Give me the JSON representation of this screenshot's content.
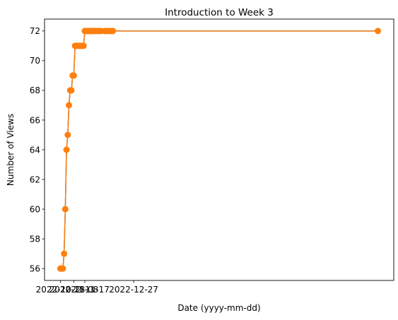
{
  "chart_data": {
    "type": "line",
    "title": "Introduction to Week 3",
    "xlabel": "Date (yyyy-mm-dd)",
    "ylabel": "Number of Views",
    "ylim": [
      55.2,
      72.8
    ],
    "y_ticks": [
      56,
      58,
      60,
      62,
      64,
      66,
      68,
      70,
      72
    ],
    "x_tick_labels": [
      "2022-10-28",
      "2022-11-08",
      "2022-11-17",
      "2022-12-27"
    ],
    "x_tick_dates": [
      "2022-10-28",
      "2022-11-08",
      "2022-11-17",
      "2022-12-27"
    ],
    "grid": false,
    "series": [
      {
        "line_color": "#1f77b4",
        "marker_color": "#ff7f0e",
        "x": [
          "2022-10-28",
          "2022-10-29",
          "2022-10-30",
          "2022-10-31",
          "2022-11-01",
          "2022-11-02",
          "2022-11-03",
          "2022-11-04",
          "2022-11-05",
          "2022-11-06",
          "2022-11-07",
          "2022-11-08",
          "2022-11-09",
          "2022-11-10",
          "2022-11-11",
          "2022-11-12",
          "2022-11-13",
          "2022-11-14",
          "2022-11-15",
          "2022-11-16",
          "2022-11-17",
          "2022-11-18",
          "2022-11-19",
          "2022-11-20",
          "2022-11-21",
          "2022-11-22",
          "2022-11-23",
          "2022-11-24",
          "2022-11-25",
          "2022-11-26",
          "2022-11-27",
          "2022-11-28",
          "2022-11-29",
          "2022-11-30",
          "2022-12-03",
          "2022-12-04",
          "2022-12-05",
          "2022-12-07",
          "2022-12-08",
          "2022-12-09",
          "2022-12-10",
          "2023-07-15"
        ],
        "y": [
          56,
          56,
          56,
          57,
          60,
          64,
          65,
          67,
          68,
          68,
          69,
          69,
          71,
          71,
          71,
          71,
          71,
          71,
          71,
          71,
          72,
          72,
          72,
          72,
          72,
          72,
          72,
          72,
          72,
          72,
          72,
          72,
          72,
          72,
          72,
          72,
          72,
          72,
          72,
          72,
          72,
          72
        ]
      }
    ]
  }
}
